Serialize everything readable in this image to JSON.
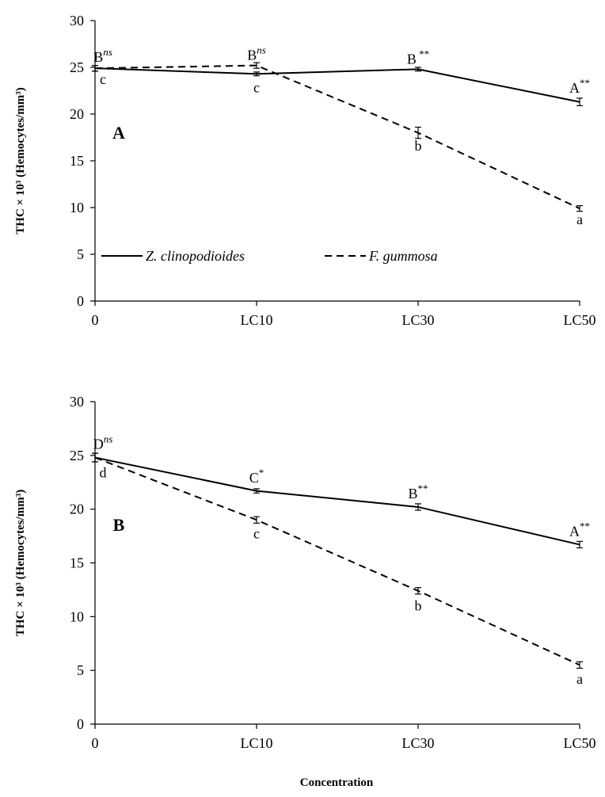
{
  "figure": {
    "xlabel": "Concentration",
    "legend": [
      {
        "label": "Z. clinopodioides",
        "style": "solid"
      },
      {
        "label": "F. gummosa",
        "style": "dashed"
      }
    ]
  },
  "chart_data": [
    {
      "type": "line",
      "panel": "A",
      "categories": [
        "0",
        "LC10",
        "LC30",
        "LC50"
      ],
      "ylabel": "THC × 10³ (Hemocytes/mm³)",
      "ylim": [
        0,
        30
      ],
      "yticks": [
        "0",
        "5",
        "10",
        "15",
        "20",
        "25",
        "30"
      ],
      "grid": false,
      "legend_placement": "inside-lower",
      "series": [
        {
          "name": "Z. clinopodioides",
          "style": "solid",
          "values": [
            24.9,
            24.3,
            24.8,
            21.3
          ],
          "errors": [
            0.3,
            0.2,
            0.2,
            0.4
          ]
        },
        {
          "name": "F. gummosa",
          "style": "dashed",
          "values": [
            24.9,
            25.2,
            18.0,
            9.9
          ],
          "errors": [
            0.3,
            0.3,
            0.6,
            0.3
          ]
        }
      ],
      "annotations": [
        {
          "cat": 0,
          "y": 25.6,
          "base": "B",
          "sup": "ns",
          "pos": "above"
        },
        {
          "cat": 1,
          "y": 25.8,
          "base": "B",
          "sup": "ns",
          "pos": "above"
        },
        {
          "cat": 2,
          "y": 25.4,
          "base": "B",
          "sup": " **",
          "pos": "above"
        },
        {
          "cat": 3,
          "y": 22.3,
          "base": "A",
          "sup": "**",
          "pos": "above"
        },
        {
          "cat": 0,
          "y": 24.4,
          "base": "c",
          "sup": "",
          "pos": "below"
        },
        {
          "cat": 1,
          "y": 23.5,
          "base": "c",
          "sup": "",
          "pos": "below"
        },
        {
          "cat": 2,
          "y": 17.3,
          "base": "b",
          "sup": "",
          "pos": "below"
        },
        {
          "cat": 3,
          "y": 9.4,
          "base": "a",
          "sup": "",
          "pos": "below"
        }
      ]
    },
    {
      "type": "line",
      "panel": "B",
      "categories": [
        "0",
        "LC10",
        "LC30",
        "LC50"
      ],
      "ylabel": "THC × 10³ (Hemocytes/mm³)",
      "ylim": [
        0,
        30
      ],
      "yticks": [
        "0",
        "5",
        "10",
        "15",
        "20",
        "25",
        "30"
      ],
      "grid": false,
      "series": [
        {
          "name": "Z. clinopodioides",
          "style": "solid",
          "values": [
            24.8,
            21.7,
            20.2,
            16.7
          ],
          "errors": [
            0.4,
            0.2,
            0.3,
            0.3
          ]
        },
        {
          "name": "F. gummosa",
          "style": "dashed",
          "values": [
            24.8,
            19.0,
            12.4,
            5.5
          ],
          "errors": [
            0.4,
            0.3,
            0.3,
            0.3
          ]
        }
      ],
      "annotations": [
        {
          "cat": 0,
          "y": 25.6,
          "base": "D",
          "sup": "ns",
          "pos": "above"
        },
        {
          "cat": 1,
          "y": 22.5,
          "base": "C",
          "sup": "*",
          "pos": "above"
        },
        {
          "cat": 2,
          "y": 21.0,
          "base": "B",
          "sup": "**",
          "pos": "above"
        },
        {
          "cat": 3,
          "y": 17.5,
          "base": "A",
          "sup": "**",
          "pos": "above"
        },
        {
          "cat": 0,
          "y": 24.0,
          "base": "d",
          "sup": "",
          "pos": "below"
        },
        {
          "cat": 1,
          "y": 18.3,
          "base": "c",
          "sup": "",
          "pos": "below"
        },
        {
          "cat": 2,
          "y": 11.6,
          "base": "b",
          "sup": "",
          "pos": "below"
        },
        {
          "cat": 3,
          "y": 4.8,
          "base": "a",
          "sup": "",
          "pos": "below"
        }
      ]
    }
  ]
}
